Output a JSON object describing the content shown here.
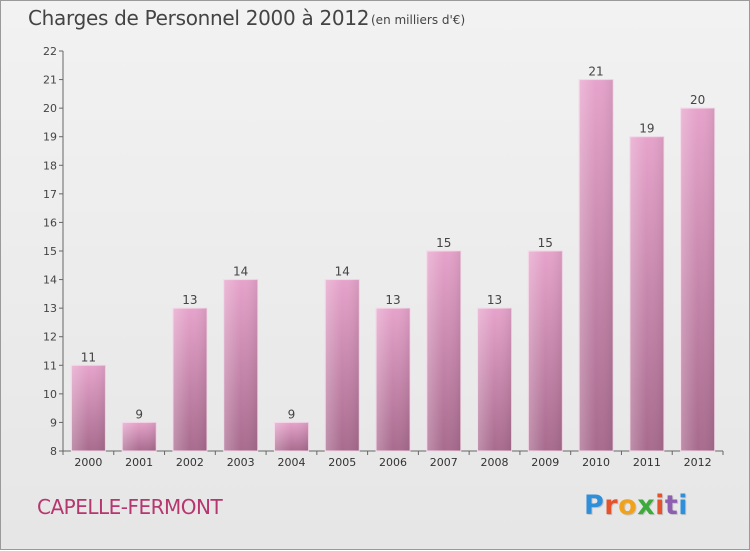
{
  "page": {
    "title": "Charges de Personnel 2000 à 2012",
    "subtitle": "(en milliers d'€)",
    "commune": "CAPELLE-FERMONT",
    "brand": "Proxiti"
  },
  "brand_colors": [
    "#2f8fd9",
    "#e4532b",
    "#f0a21c",
    "#3cab3c",
    "#e4532b",
    "#8e5fb0",
    "#2f8fd9"
  ],
  "chart_data": {
    "type": "bar",
    "title": "Charges de Personnel 2000 à 2012",
    "subtitle": "(en milliers d'€)",
    "xlabel": "",
    "ylabel": "",
    "categories": [
      "2000",
      "2001",
      "2002",
      "2003",
      "2004",
      "2005",
      "2006",
      "2007",
      "2008",
      "2009",
      "2010",
      "2011",
      "2012"
    ],
    "values": [
      11,
      9,
      13,
      14,
      9,
      14,
      13,
      15,
      13,
      15,
      21,
      19,
      20
    ],
    "ylim": [
      8,
      22
    ],
    "yticks": [
      8,
      9,
      10,
      11,
      12,
      13,
      14,
      15,
      16,
      17,
      18,
      19,
      20,
      21,
      22
    ],
    "grid": false,
    "bar_color_top": "#e6a3cb",
    "bar_color_bottom": "#a86b8e"
  }
}
